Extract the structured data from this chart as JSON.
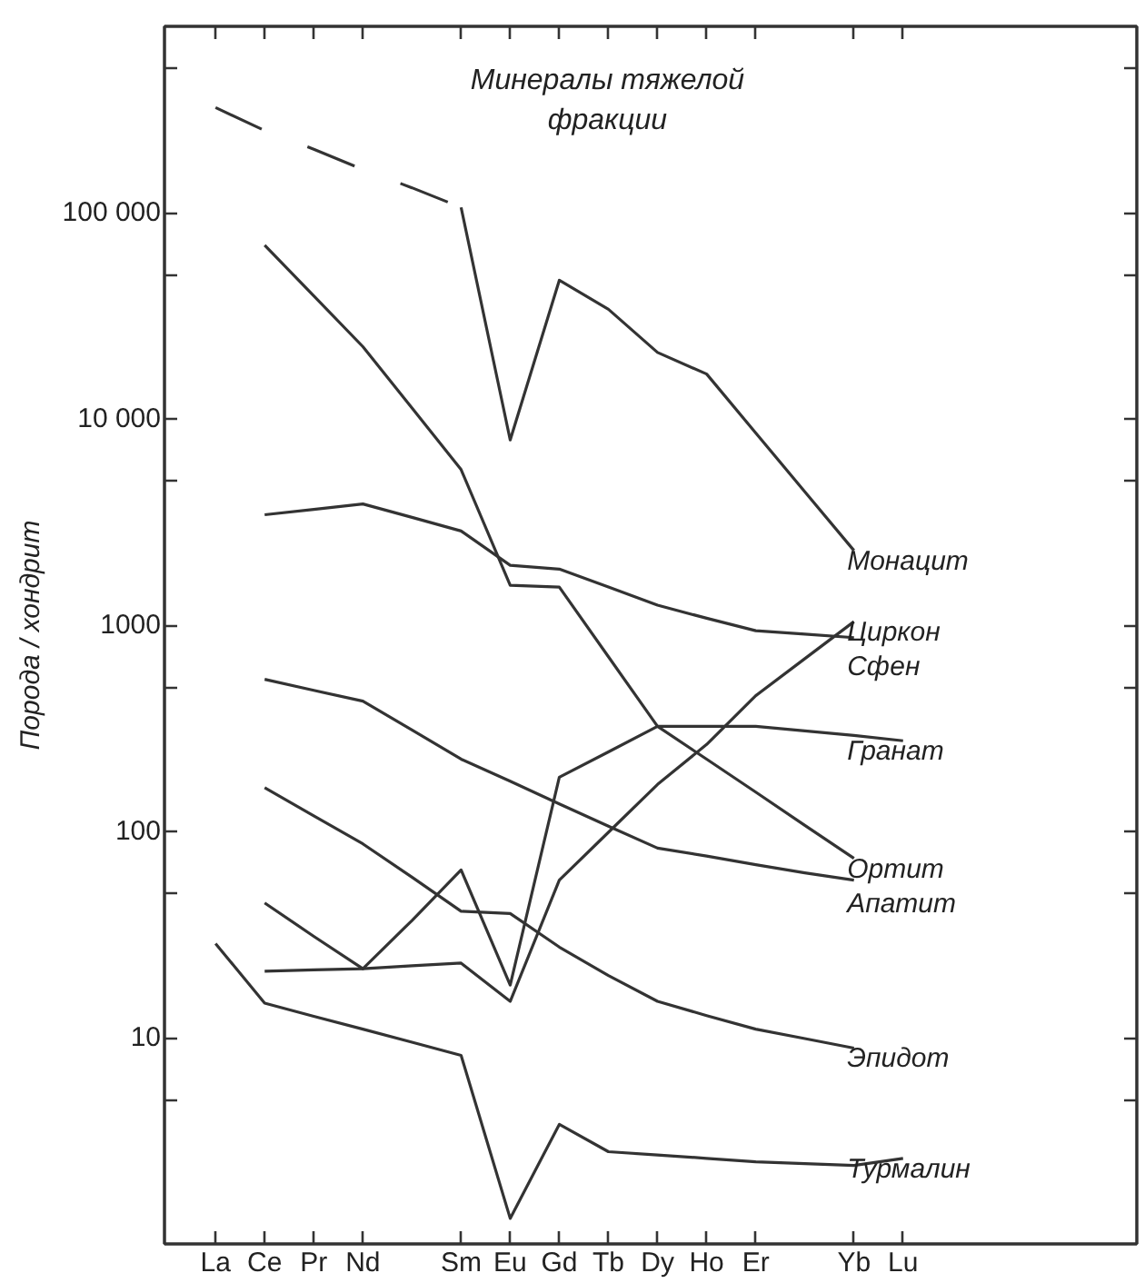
{
  "chart_data": {
    "type": "line",
    "title": "Минералы тяжелой фракции",
    "ylabel": "Порода / хондрит",
    "categories": [
      "La",
      "Ce",
      "Pr",
      "Nd",
      null,
      "Sm",
      "Eu",
      "Gd",
      "Tb",
      "Dy",
      "Ho",
      "Er",
      null,
      "Yb",
      "Lu"
    ],
    "ylim": [
      1,
      800000
    ],
    "yticks": [
      {
        "value": 5,
        "label": null
      },
      {
        "value": 10,
        "label": "10"
      },
      {
        "value": 50,
        "label": null
      },
      {
        "value": 100,
        "label": "100"
      },
      {
        "value": 500,
        "label": null
      },
      {
        "value": 1000,
        "label": "1000"
      },
      {
        "value": 5000,
        "label": null
      },
      {
        "value": 10000,
        "label": "10 000"
      },
      {
        "value": 50000,
        "label": null
      },
      {
        "value": 100000,
        "label": "100 000"
      },
      {
        "value": 500000,
        "label": null
      }
    ],
    "log": "y",
    "grid": false,
    "legend": false,
    "marker": "none",
    "series": [
      {
        "color": "#333333",
        "line_style": "dashed",
        "values": [
          323000,
          250000,
          203000,
          162000,
          132000,
          106000,
          null,
          null,
          null,
          null,
          null,
          null,
          null,
          null,
          null
        ]
      },
      {
        "name": "Монацит",
        "color": "#333333",
        "line_style": "solid",
        "values": [
          null,
          null,
          null,
          null,
          null,
          106000,
          7900,
          47000,
          34000,
          21000,
          16500,
          8550,
          4430,
          2300,
          null
        ]
      },
      {
        "name": "Циркон",
        "color": "#333333",
        "line_style": "solid",
        "values": [
          null,
          21,
          21.3,
          21.6,
          22.3,
          23,
          15,
          58,
          99,
          169,
          264,
          455,
          688,
          1040,
          null
        ]
      },
      {
        "name": "Сфен",
        "color": "#333333",
        "line_style": "solid",
        "values": [
          null,
          3430,
          3640,
          3870,
          3330,
          2860,
          1950,
          1870,
          1530,
          1250,
          1080,
          940,
          905,
          870,
          null
        ]
      },
      {
        "name": "Гранат",
        "color": "#333333",
        "line_style": "solid",
        "values": [
          null,
          45,
          31,
          21.6,
          37,
          65,
          18,
          183,
          243,
          323,
          323,
          323,
          307,
          292,
          275
        ]
      },
      {
        "name": "Ортит",
        "color": "#333333",
        "line_style": "solid",
        "values": [
          null,
          69500,
          39500,
          22400,
          11300,
          5680,
          1560,
          1530,
          703,
          323,
          224,
          155,
          107,
          74,
          null
        ]
      },
      {
        "name": "Апатит",
        "color": "#333333",
        "line_style": "solid",
        "values": [
          null,
          546,
          483,
          428,
          310,
          224,
          175,
          136,
          106,
          83,
          76,
          69,
          63,
          58,
          null
        ]
      },
      {
        "name": "Эпидот",
        "color": "#333333",
        "line_style": "solid",
        "values": [
          null,
          163,
          119,
          87,
          60,
          41,
          40,
          27.5,
          20,
          15,
          12.8,
          11,
          9.9,
          8.9,
          null
        ]
      },
      {
        "name": "Турмалин",
        "color": "#333333",
        "line_style": "solid",
        "values": [
          28.6,
          14.7,
          12.7,
          11.0,
          9.5,
          8.2,
          1.33,
          3.8,
          2.8,
          2.7,
          2.6,
          2.5,
          2.45,
          2.4,
          2.6
        ]
      }
    ]
  }
}
